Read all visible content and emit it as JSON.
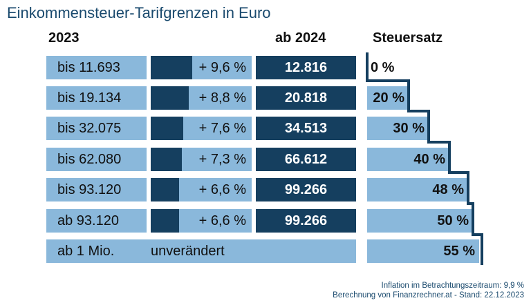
{
  "title": "Einkommensteuer-Tarifgrenzen in Euro",
  "headers": {
    "col2023": "2023",
    "col2024": "ab 2024",
    "colRate": "Steuersatz"
  },
  "chart_data": {
    "type": "table",
    "rows": [
      {
        "limit_2023": "bis 11.693",
        "increase": "+ 9,6 %",
        "increase_value": 9.6,
        "limit_2024": "12.816",
        "rate": "0 %"
      },
      {
        "limit_2023": "bis 19.134",
        "increase": "+ 8,8 %",
        "increase_value": 8.8,
        "limit_2024": "20.818",
        "rate": "20 %"
      },
      {
        "limit_2023": "bis 32.075",
        "increase": "+ 7,6 %",
        "increase_value": 7.6,
        "limit_2024": "34.513",
        "rate": "30 %"
      },
      {
        "limit_2023": "bis 62.080",
        "increase": "+ 7,3 %",
        "increase_value": 7.3,
        "limit_2024": "66.612",
        "rate": "40 %"
      },
      {
        "limit_2023": "bis 93.120",
        "increase": "+ 6,6 %",
        "increase_value": 6.6,
        "limit_2024": "99.266",
        "rate": "48 %"
      },
      {
        "limit_2023": "ab 93.120",
        "increase": "+ 6,6 %",
        "increase_value": 6.6,
        "limit_2024": "99.266",
        "rate": "50 %"
      }
    ],
    "last_row": {
      "limit": "ab 1 Mio.",
      "note": "unverändert",
      "rate": "55 %"
    }
  },
  "footer": {
    "line1": "Inflation im Betrachtungszeitraum: 9,9 %",
    "line2": "Berechnung von Finanzrechner.at - Stand: 22.12.2023"
  },
  "colors": {
    "dark": "#153f5f",
    "light": "#8ab8db",
    "title": "#1a4a6e"
  }
}
